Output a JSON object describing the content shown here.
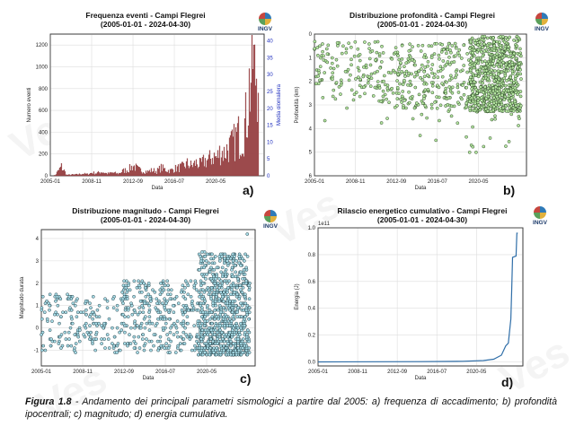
{
  "charts": {
    "a": {
      "title_line1": "Frequenza eventi - Campi Flegrei",
      "title_line2": "(2005-01-01 - 2024-04-30)",
      "letter": "a)",
      "xlabel": "Data",
      "ylabel_left": "Numero eventi",
      "ylabel_right": "Media giornaliera"
    },
    "b": {
      "title_line1": "Distribuzione profondità - Campi Flegrei",
      "title_line2": "(2005-01-01 - 2024-04-30)",
      "letter": "b)",
      "xlabel": "Data",
      "ylabel": "Profondità (km)"
    },
    "c": {
      "title_line1": "Distribuzione magnitudo - Campi Flegrei",
      "title_line2": "(2005-01-01 - 2024-04-30)",
      "letter": "c)",
      "xlabel": "Data",
      "ylabel": "Magnitudo durata"
    },
    "d": {
      "title_line1": "Rilascio energetico cumulativo - Campi Flegrei",
      "title_line2": "(2005-01-01 - 2024-04-30)",
      "letter": "d)",
      "xlabel": "Data",
      "ylabel": "Energia (J)",
      "offset_text": "1e11"
    }
  },
  "logo_text": "INGV",
  "watermark_text": "Ves",
  "caption": {
    "label": "Figura 1.8",
    "text": " - Andamento dei principali parametri sismologici a partire dal 2005: a) frequenza di accadimento; b) profondità ipocentrali; c) magnitudo; d) energia cumulativa."
  },
  "colors": {
    "bar": "#b5585a",
    "bar_edge": "#7a2d2f",
    "scatter_b_fill": "#b6e7a2",
    "scatter_c_fill": "#a9dde8",
    "line_d": "#2f6ea8",
    "right_axis": "#1f2fbf"
  },
  "chart_data": [
    {
      "type": "bar",
      "id": "a",
      "x_ticks": [
        "2005-01",
        "2008-11",
        "2012-09",
        "2016-07",
        "2020-05"
      ],
      "y_ticks": [
        0,
        200,
        400,
        600,
        800,
        1000,
        1200
      ],
      "ylim": [
        0,
        1300
      ],
      "y2_ticks": [
        0,
        5,
        10,
        15,
        20,
        25,
        30,
        35,
        40
      ],
      "y2lim": [
        0,
        42
      ],
      "x_range": [
        "2005-01-01",
        "2024-04-30"
      ],
      "grid": true,
      "points": [
        [
          "2005-01-01",
          0
        ],
        [
          "2005-06-01",
          5
        ],
        [
          "2006-01-01",
          90
        ],
        [
          "2006-07-01",
          8
        ],
        [
          "2007-01-01",
          10
        ],
        [
          "2007-06-01",
          12
        ],
        [
          "2008-01-01",
          20
        ],
        [
          "2008-06-01",
          15
        ],
        [
          "2008-11-01",
          30
        ],
        [
          "2009-04-01",
          25
        ],
        [
          "2009-10-01",
          40
        ],
        [
          "2010-04-01",
          20
        ],
        [
          "2010-10-01",
          30
        ],
        [
          "2011-04-01",
          20
        ],
        [
          "2011-10-01",
          50
        ],
        [
          "2012-03-01",
          60
        ],
        [
          "2012-09-01",
          100
        ],
        [
          "2013-03-01",
          60
        ],
        [
          "2013-08-01",
          50
        ],
        [
          "2014-01-01",
          40
        ],
        [
          "2014-06-01",
          55
        ],
        [
          "2014-11-01",
          45
        ],
        [
          "2015-04-01",
          80
        ],
        [
          "2015-09-01",
          60
        ],
        [
          "2016-02-01",
          50
        ],
        [
          "2016-07-01",
          70
        ],
        [
          "2016-12-01",
          80
        ],
        [
          "2017-04-01",
          90
        ],
        [
          "2017-09-01",
          120
        ],
        [
          "2018-02-01",
          100
        ],
        [
          "2018-07-01",
          130
        ],
        [
          "2018-12-01",
          110
        ],
        [
          "2019-04-01",
          150
        ],
        [
          "2019-09-01",
          160
        ],
        [
          "2020-02-01",
          200
        ],
        [
          "2020-06-01",
          180
        ],
        [
          "2020-10-01",
          250
        ],
        [
          "2021-02-01",
          230
        ],
        [
          "2021-06-01",
          280
        ],
        [
          "2021-10-01",
          300
        ],
        [
          "2022-02-01",
          350
        ],
        [
          "2022-05-01",
          420
        ],
        [
          "2022-08-01",
          380
        ],
        [
          "2022-11-01",
          450
        ],
        [
          "2023-02-01",
          550
        ],
        [
          "2023-04-01",
          700
        ],
        [
          "2023-06-01",
          900
        ],
        [
          "2023-08-01",
          1000
        ],
        [
          "2023-10-01",
          1200
        ],
        [
          "2023-12-01",
          1000
        ],
        [
          "2024-02-01",
          1100
        ],
        [
          "2024-04-01",
          1260
        ]
      ]
    },
    {
      "type": "scatter",
      "id": "b",
      "x_ticks": [
        "2005-01",
        "2008-11",
        "2012-09",
        "2016-07",
        "2020-05"
      ],
      "y_ticks": [
        0,
        1,
        2,
        3,
        4,
        5,
        6
      ],
      "ylim": [
        0,
        6
      ],
      "y_inverted": true,
      "x_range": [
        "2005-01-01",
        "2024-04-30"
      ],
      "grid": true,
      "density": "sparse until 2012, dense cloud 2012-2024 between 0.5 and 3 km with deeper outliers to ~5.5 km"
    },
    {
      "type": "scatter",
      "id": "c",
      "x_ticks": [
        "2005-01",
        "2008-11",
        "2012-09",
        "2016-07",
        "2020-05"
      ],
      "y_ticks": [
        -1,
        0,
        1,
        2,
        3,
        4
      ],
      "ylim": [
        -1.7,
        4.4
      ],
      "x_range": [
        "2005-01-01",
        "2024-04-30"
      ],
      "grid": true,
      "max_magnitude": 4.2
    },
    {
      "type": "line",
      "id": "d",
      "x_ticks": [
        "2005-01",
        "2008-11",
        "2012-09",
        "2016-07",
        "2020-05"
      ],
      "y_ticks": [
        0.0,
        0.2,
        0.4,
        0.6,
        0.8,
        1.0
      ],
      "ylim": [
        -0.03,
        1.0
      ],
      "y_scale": "1e11",
      "x_range": [
        "2005-01-01",
        "2024-04-30"
      ],
      "grid": true,
      "points": [
        [
          "2005-01-01",
          0.0
        ],
        [
          "2015-01-01",
          0.002
        ],
        [
          "2019-01-01",
          0.005
        ],
        [
          "2021-01-01",
          0.01
        ],
        [
          "2022-01-01",
          0.02
        ],
        [
          "2022-10-01",
          0.05
        ],
        [
          "2023-03-01",
          0.12
        ],
        [
          "2023-06-01",
          0.14
        ],
        [
          "2023-09-01",
          0.32
        ],
        [
          "2023-10-01",
          0.55
        ],
        [
          "2023-11-01",
          0.78
        ],
        [
          "2024-03-01",
          0.79
        ],
        [
          "2024-04-01",
          0.96
        ],
        [
          "2024-04-30",
          0.96
        ]
      ]
    }
  ]
}
